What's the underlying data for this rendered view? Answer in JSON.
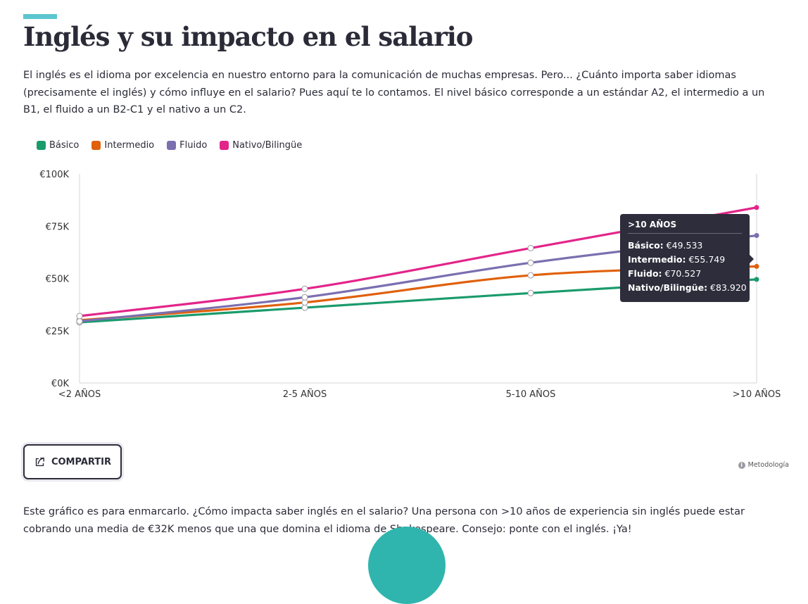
{
  "header": {
    "title": "Inglés y su impacto en el salario",
    "intro": "El inglés es el idioma por excelencia en nuestro entorno para la comunicación de muchas empresas. Pero... ¿Cuánto importa saber idiomas (precisamente el inglés) y cómo influye en el salario? Pues aquí te lo contamos. El nivel básico corresponde a un estándar A2, el intermedio a un B1, el fluido a un B2-C1 y el nativo a un C2."
  },
  "chart_data": {
    "type": "line",
    "categories": [
      "<2 AÑOS",
      "2-5 AÑOS",
      "5-10 AÑOS",
      ">10 AÑOS"
    ],
    "ylim": [
      0,
      100000
    ],
    "yticks": [
      {
        "value": 0,
        "label": "€0K"
      },
      {
        "value": 25000,
        "label": "€25K"
      },
      {
        "value": 50000,
        "label": "€50K"
      },
      {
        "value": 75000,
        "label": "€75K"
      },
      {
        "value": 100000,
        "label": "€100K"
      }
    ],
    "grid": false,
    "legend_position": "top-left",
    "series": [
      {
        "name": "Básico",
        "color": "#1a9b6c",
        "values": [
          29000,
          36000,
          43000,
          49533
        ]
      },
      {
        "name": "Intermedio",
        "color": "#e0600c",
        "values": [
          30000,
          38500,
          51500,
          55749
        ]
      },
      {
        "name": "Fluido",
        "color": "#7b6fb0",
        "values": [
          29500,
          41000,
          57500,
          70527
        ]
      },
      {
        "name": "Nativo/Bilingüe",
        "color": "#e3258a",
        "values": [
          32000,
          45000,
          64500,
          83920
        ]
      }
    ]
  },
  "tooltip": {
    "title": ">10 AÑOS",
    "rows": [
      {
        "label": "Básico:",
        "value": "€49.533"
      },
      {
        "label": "Intermedio:",
        "value": "€55.749"
      },
      {
        "label": "Fluido:",
        "value": "€70.527"
      },
      {
        "label": "Nativo/Bilingüe:",
        "value": "€83.920"
      }
    ]
  },
  "actions": {
    "share_label": "COMPARTIR",
    "methodology_label": "Metodología"
  },
  "footer": {
    "text": "Este gráfico es para enmarcarlo. ¿Cómo impacta saber inglés en el salario? Una persona con >10 años de experiencia sin inglés puede estar cobrando una media de €32K menos que una que domina el idioma de Shakespeare. Consejo: ponte con el inglés. ¡Ya!"
  }
}
